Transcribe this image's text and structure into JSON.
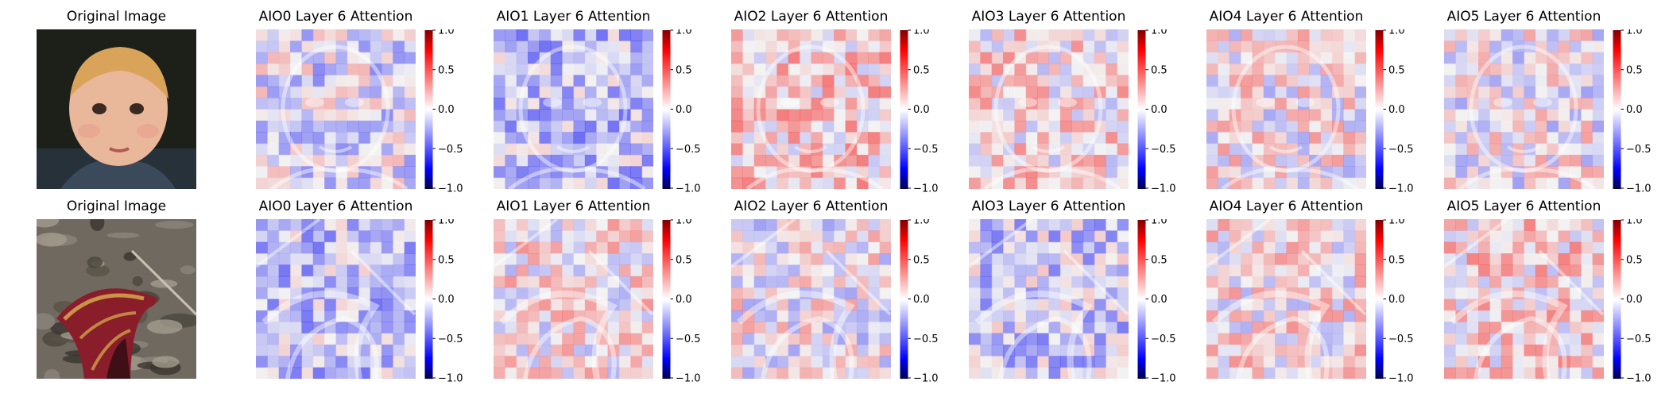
{
  "figure": {
    "rows": [
      {
        "image": "child-portrait",
        "tint_seed": 11
      },
      {
        "image": "skunk-cabbage-spathe",
        "tint_seed": 47
      }
    ],
    "original_title": "Original Image",
    "panel_titles": [
      "AIO0 Layer 6 Attention",
      "AIO1 Layer 6 Attention",
      "AIO2 Layer 6 Attention",
      "AIO3 Layer 6 Attention",
      "AIO4 Layer 6 Attention",
      "AIO5 Layer 6 Attention"
    ]
  },
  "chart_data": {
    "type": "heatmap",
    "colormap": "seismic (blue-white-red), blended over grayscale image",
    "colorbar": {
      "vmin": -1.0,
      "vmax": 1.0,
      "ticks": [
        "1.0",
        "0.5",
        "0.0",
        "−0.5",
        "−1.0"
      ],
      "tick_values": [
        1.0,
        0.5,
        0.0,
        -0.5,
        -1.0
      ]
    },
    "rows": [
      {
        "row": 1,
        "panels": [
          {
            "title": "AIO0 Layer 6 Attention",
            "mean_bias": -0.15
          },
          {
            "title": "AIO1 Layer 6 Attention",
            "mean_bias": -0.35
          },
          {
            "title": "AIO2 Layer 6 Attention",
            "mean_bias": 0.25
          },
          {
            "title": "AIO3 Layer 6 Attention",
            "mean_bias": 0.15
          },
          {
            "title": "AIO4 Layer 6 Attention",
            "mean_bias": 0.05
          },
          {
            "title": "AIO5 Layer 6 Attention",
            "mean_bias": 0.0
          }
        ]
      },
      {
        "row": 2,
        "panels": [
          {
            "title": "AIO0 Layer 6 Attention",
            "mean_bias": -0.3
          },
          {
            "title": "AIO1 Layer 6 Attention",
            "mean_bias": 0.1
          },
          {
            "title": "AIO2 Layer 6 Attention",
            "mean_bias": 0.0
          },
          {
            "title": "AIO3 Layer 6 Attention",
            "mean_bias": -0.25
          },
          {
            "title": "AIO4 Layer 6 Attention",
            "mean_bias": 0.1
          },
          {
            "title": "AIO5 Layer 6 Attention",
            "mean_bias": 0.2
          }
        ]
      }
    ]
  }
}
